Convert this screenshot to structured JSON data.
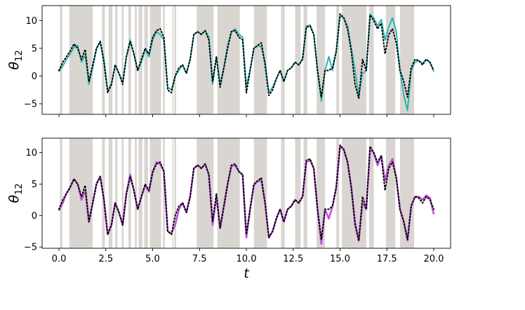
{
  "chart_data": [
    {
      "type": "line",
      "panel": "top",
      "ylabel": "θ",
      "ylabel_sub": "12",
      "xlim": [
        -0.9,
        20.9
      ],
      "ylim": [
        -6.9,
        12.7
      ],
      "yticks": [
        -5,
        0,
        5,
        10
      ],
      "ytick_labels": [
        "−5",
        "0",
        "5",
        "10"
      ],
      "xtick_labels_shown": false,
      "shaded_intervals": [
        [
          0.05,
          0.18
        ],
        [
          0.55,
          1.8
        ],
        [
          2.3,
          2.45
        ],
        [
          2.65,
          2.85
        ],
        [
          3.0,
          3.12
        ],
        [
          3.35,
          3.45
        ],
        [
          3.7,
          3.85
        ],
        [
          4.05,
          4.15
        ],
        [
          4.25,
          4.45
        ],
        [
          4.55,
          4.75
        ],
        [
          4.85,
          5.45
        ],
        [
          5.55,
          5.65
        ],
        [
          6.05,
          6.1
        ],
        [
          6.15,
          6.25
        ],
        [
          7.35,
          8.25
        ],
        [
          8.45,
          9.65
        ],
        [
          10.4,
          11.1
        ],
        [
          11.85,
          12.05
        ],
        [
          12.6,
          12.9
        ],
        [
          13.05,
          13.25
        ],
        [
          13.75,
          14.2
        ],
        [
          14.8,
          14.95
        ],
        [
          15.1,
          16.4
        ],
        [
          16.55,
          16.8
        ],
        [
          17.45,
          17.95
        ],
        [
          18.2,
          18.95
        ]
      ],
      "series": [
        {
          "style": "solid",
          "color": "#29b5b0",
          "x": [
            0,
            0.2,
            0.4,
            0.6,
            0.8,
            1.0,
            1.2,
            1.4,
            1.6,
            1.8,
            2.0,
            2.2,
            2.4,
            2.6,
            2.8,
            3.0,
            3.2,
            3.4,
            3.6,
            3.8,
            4.0,
            4.2,
            4.4,
            4.6,
            4.8,
            5.0,
            5.2,
            5.4,
            5.6,
            5.8,
            6.0,
            6.2,
            6.4,
            6.6,
            6.8,
            7.0,
            7.2,
            7.4,
            7.6,
            7.8,
            8.0,
            8.2,
            8.4,
            8.6,
            8.8,
            9.0,
            9.2,
            9.4,
            9.6,
            9.8,
            10.0,
            10.2,
            10.4,
            10.6,
            10.8,
            11.0,
            11.2,
            11.4,
            11.6,
            11.8,
            12.0,
            12.2,
            12.4,
            12.6,
            12.8,
            13.0,
            13.2,
            13.4,
            13.6,
            13.8,
            14.0,
            14.2,
            14.4,
            14.6,
            14.8,
            15.0,
            15.2,
            15.4,
            15.6,
            15.8,
            16.0,
            16.2,
            16.4,
            16.6,
            16.8,
            17.0,
            17.2,
            17.4,
            17.6,
            17.8,
            18.0,
            18.2,
            18.4,
            18.6,
            18.8,
            19.0,
            19.2,
            19.4,
            19.6,
            19.8,
            20.0
          ],
          "y": [
            0.8,
            1.8,
            3.0,
            4.0,
            5.2,
            5.5,
            2.5,
            3.8,
            -1.5,
            1.5,
            4.8,
            6.3,
            3.0,
            -2.5,
            -1.5,
            2.0,
            0.5,
            -1.0,
            3.5,
            6.5,
            4.0,
            1.0,
            2.5,
            4.8,
            3.5,
            6.5,
            8.0,
            7.5,
            6.5,
            -2.0,
            -2.5,
            0.0,
            1.0,
            2.0,
            0.5,
            3.0,
            7.5,
            8.0,
            7.5,
            8.2,
            7.0,
            -1.5,
            3.5,
            -1.5,
            1.5,
            5.5,
            8.0,
            8.5,
            7.5,
            7.0,
            -1.8,
            1.0,
            5.0,
            5.5,
            5.2,
            2.5,
            -3.0,
            -2.0,
            -0.5,
            1.0,
            -1.0,
            1.0,
            1.5,
            2.5,
            2.0,
            3.2,
            9.0,
            9.2,
            7.5,
            1.0,
            -4.5,
            1.0,
            3.5,
            1.0,
            4.5,
            10.8,
            10.5,
            9.0,
            5.0,
            1.0,
            -3.5,
            0.5,
            1.0,
            11.2,
            10.5,
            9.0,
            10.2,
            6.5,
            8.8,
            10.5,
            8.0,
            1.0,
            -3.5,
            -6.2,
            1.0,
            2.5,
            2.8,
            2.3,
            3.0,
            2.5,
            0.8
          ]
        },
        {
          "style": "dotted",
          "color": "#000000",
          "x": [
            0,
            0.2,
            0.4,
            0.6,
            0.8,
            1.0,
            1.2,
            1.4,
            1.6,
            1.8,
            2.0,
            2.2,
            2.4,
            2.6,
            2.8,
            3.0,
            3.2,
            3.4,
            3.6,
            3.8,
            4.0,
            4.2,
            4.4,
            4.6,
            4.8,
            5.0,
            5.2,
            5.4,
            5.6,
            5.8,
            6.0,
            6.2,
            6.4,
            6.6,
            6.8,
            7.0,
            7.2,
            7.4,
            7.6,
            7.8,
            8.0,
            8.2,
            8.4,
            8.6,
            8.8,
            9.0,
            9.2,
            9.4,
            9.6,
            9.8,
            10.0,
            10.2,
            10.4,
            10.6,
            10.8,
            11.0,
            11.2,
            11.4,
            11.6,
            11.8,
            12.0,
            12.2,
            12.4,
            12.6,
            12.8,
            13.0,
            13.2,
            13.4,
            13.6,
            13.8,
            14.0,
            14.2,
            14.4,
            14.6,
            14.8,
            15.0,
            15.2,
            15.4,
            15.6,
            15.8,
            16.0,
            16.2,
            16.4,
            16.6,
            16.8,
            17.0,
            17.2,
            17.4,
            17.6,
            17.8,
            18.0,
            18.2,
            18.4,
            18.6,
            18.8,
            19.0,
            19.2,
            19.4,
            19.6,
            19.8,
            20.0
          ],
          "y": [
            1.0,
            2.5,
            3.5,
            4.5,
            5.8,
            5.0,
            3.0,
            4.8,
            -1.0,
            2.0,
            5.0,
            6.2,
            2.5,
            -3.0,
            -1.5,
            2.0,
            0.5,
            -1.5,
            3.5,
            6.2,
            4.0,
            1.0,
            3.0,
            5.0,
            4.0,
            7.0,
            8.2,
            8.5,
            7.0,
            -2.5,
            -3.0,
            0.0,
            1.5,
            2.0,
            0.5,
            3.0,
            7.5,
            8.0,
            7.5,
            8.2,
            6.5,
            -1.0,
            3.5,
            -2.0,
            1.5,
            5.0,
            8.0,
            8.2,
            7.0,
            6.5,
            -3.0,
            1.0,
            5.0,
            5.5,
            6.0,
            2.0,
            -3.5,
            -2.5,
            -0.5,
            1.0,
            -1.0,
            1.0,
            1.5,
            2.5,
            2.0,
            3.0,
            8.8,
            9.0,
            7.5,
            1.0,
            -3.8,
            1.0,
            1.0,
            1.5,
            4.5,
            11.2,
            10.5,
            8.5,
            4.5,
            -1.5,
            -4.0,
            3.0,
            1.0,
            11.0,
            10.0,
            8.5,
            9.5,
            4.0,
            7.5,
            8.5,
            6.0,
            1.0,
            -1.0,
            -3.8,
            1.5,
            3.0,
            2.8,
            2.0,
            3.0,
            2.5,
            1.0
          ]
        }
      ]
    },
    {
      "type": "line",
      "panel": "bottom",
      "ylabel": "θ",
      "ylabel_sub": "12",
      "xlabel": "t",
      "xlim": [
        -0.9,
        20.9
      ],
      "ylim": [
        -5.2,
        12.3
      ],
      "yticks": [
        -5,
        0,
        5,
        10
      ],
      "ytick_labels": [
        "−5",
        "0",
        "5",
        "10"
      ],
      "xticks": [
        0,
        2.5,
        5,
        7.5,
        10,
        12.5,
        15,
        17.5,
        20
      ],
      "xtick_labels": [
        "0.0",
        "2.5",
        "5.0",
        "7.5",
        "10.0",
        "12.5",
        "15.0",
        "17.5",
        "20.0"
      ],
      "shaded_intervals": [
        [
          0.05,
          0.18
        ],
        [
          0.55,
          1.8
        ],
        [
          2.3,
          2.45
        ],
        [
          2.65,
          2.85
        ],
        [
          3.0,
          3.12
        ],
        [
          3.35,
          3.45
        ],
        [
          3.7,
          3.85
        ],
        [
          4.05,
          4.15
        ],
        [
          4.25,
          4.45
        ],
        [
          4.55,
          4.75
        ],
        [
          4.85,
          5.45
        ],
        [
          5.55,
          5.65
        ],
        [
          6.05,
          6.1
        ],
        [
          6.15,
          6.25
        ],
        [
          7.35,
          8.25
        ],
        [
          8.45,
          9.65
        ],
        [
          10.4,
          11.1
        ],
        [
          11.85,
          12.05
        ],
        [
          12.6,
          12.9
        ],
        [
          13.05,
          13.25
        ],
        [
          13.75,
          14.2
        ],
        [
          14.8,
          14.95
        ],
        [
          15.1,
          16.4
        ],
        [
          16.55,
          16.8
        ],
        [
          17.45,
          17.95
        ],
        [
          18.2,
          18.95
        ]
      ],
      "series": [
        {
          "style": "solid",
          "color": "#bb55d6",
          "x": [
            0,
            0.2,
            0.4,
            0.6,
            0.8,
            1.0,
            1.2,
            1.4,
            1.6,
            1.8,
            2.0,
            2.2,
            2.4,
            2.6,
            2.8,
            3.0,
            3.2,
            3.4,
            3.6,
            3.8,
            4.0,
            4.2,
            4.4,
            4.6,
            4.8,
            5.0,
            5.2,
            5.4,
            5.6,
            5.8,
            6.0,
            6.2,
            6.4,
            6.6,
            6.8,
            7.0,
            7.2,
            7.4,
            7.6,
            7.8,
            8.0,
            8.2,
            8.4,
            8.6,
            8.8,
            9.0,
            9.2,
            9.4,
            9.6,
            9.8,
            10.0,
            10.2,
            10.4,
            10.6,
            10.8,
            11.0,
            11.2,
            11.4,
            11.6,
            11.8,
            12.0,
            12.2,
            12.4,
            12.6,
            12.8,
            13.0,
            13.2,
            13.4,
            13.6,
            13.8,
            14.0,
            14.2,
            14.4,
            14.6,
            14.8,
            15.0,
            15.2,
            15.4,
            15.6,
            15.8,
            16.0,
            16.2,
            16.4,
            16.6,
            16.8,
            17.0,
            17.2,
            17.4,
            17.6,
            17.8,
            18.0,
            18.2,
            18.4,
            18.6,
            18.8,
            19.0,
            19.2,
            19.4,
            19.6,
            19.8,
            20.0
          ],
          "y": [
            0.8,
            2.0,
            3.5,
            4.5,
            5.8,
            5.0,
            2.5,
            4.0,
            -1.0,
            2.0,
            5.0,
            6.2,
            2.5,
            -3.0,
            -1.5,
            2.0,
            0.5,
            -1.5,
            3.5,
            6.5,
            4.0,
            1.0,
            3.0,
            4.8,
            3.8,
            6.8,
            8.5,
            8.2,
            7.0,
            -2.5,
            -2.8,
            -1.5,
            1.0,
            2.0,
            0.5,
            3.0,
            7.5,
            8.0,
            7.5,
            8.2,
            6.5,
            -1.5,
            3.0,
            -2.0,
            1.5,
            5.0,
            7.8,
            8.0,
            7.0,
            6.5,
            -3.5,
            1.0,
            4.8,
            5.5,
            5.5,
            2.0,
            -3.5,
            -2.5,
            -0.5,
            1.0,
            -1.0,
            1.0,
            1.5,
            2.5,
            2.0,
            3.0,
            8.5,
            8.8,
            7.5,
            1.0,
            -4.5,
            1.0,
            -0.5,
            1.5,
            4.5,
            11.0,
            10.5,
            8.5,
            4.5,
            -1.0,
            -4.0,
            2.0,
            1.0,
            10.5,
            10.0,
            8.0,
            9.5,
            5.5,
            8.0,
            9.0,
            6.0,
            1.0,
            -1.0,
            -4.0,
            1.5,
            3.0,
            3.0,
            2.5,
            3.2,
            2.8,
            0.2
          ]
        },
        {
          "style": "dotted",
          "color": "#000000",
          "x": [
            0,
            0.2,
            0.4,
            0.6,
            0.8,
            1.0,
            1.2,
            1.4,
            1.6,
            1.8,
            2.0,
            2.2,
            2.4,
            2.6,
            2.8,
            3.0,
            3.2,
            3.4,
            3.6,
            3.8,
            4.0,
            4.2,
            4.4,
            4.6,
            4.8,
            5.0,
            5.2,
            5.4,
            5.6,
            5.8,
            6.0,
            6.2,
            6.4,
            6.6,
            6.8,
            7.0,
            7.2,
            7.4,
            7.6,
            7.8,
            8.0,
            8.2,
            8.4,
            8.6,
            8.8,
            9.0,
            9.2,
            9.4,
            9.6,
            9.8,
            10.0,
            10.2,
            10.4,
            10.6,
            10.8,
            11.0,
            11.2,
            11.4,
            11.6,
            11.8,
            12.0,
            12.2,
            12.4,
            12.6,
            12.8,
            13.0,
            13.2,
            13.4,
            13.6,
            13.8,
            14.0,
            14.2,
            14.4,
            14.6,
            14.8,
            15.0,
            15.2,
            15.4,
            15.6,
            15.8,
            16.0,
            16.2,
            16.4,
            16.6,
            16.8,
            17.0,
            17.2,
            17.4,
            17.6,
            17.8,
            18.0,
            18.2,
            18.4,
            18.6,
            18.8,
            19.0,
            19.2,
            19.4,
            19.6,
            19.8,
            20.0
          ],
          "y": [
            1.0,
            2.5,
            3.5,
            4.5,
            5.8,
            5.0,
            3.0,
            4.8,
            -1.0,
            2.0,
            5.0,
            6.2,
            2.5,
            -3.0,
            -1.5,
            2.0,
            0.5,
            -1.5,
            3.5,
            6.2,
            4.0,
            1.0,
            3.0,
            5.0,
            4.0,
            7.0,
            8.2,
            8.5,
            7.0,
            -2.5,
            -3.0,
            0.0,
            1.5,
            2.0,
            0.5,
            3.0,
            7.5,
            8.0,
            7.5,
            8.2,
            6.5,
            -1.0,
            3.5,
            -2.0,
            1.5,
            5.0,
            8.0,
            8.2,
            7.0,
            6.5,
            -3.0,
            1.0,
            5.0,
            5.5,
            6.0,
            2.0,
            -3.5,
            -2.5,
            -0.5,
            1.0,
            -1.0,
            1.0,
            1.5,
            2.5,
            2.0,
            3.0,
            8.8,
            9.0,
            7.5,
            1.0,
            -3.8,
            1.0,
            1.0,
            1.5,
            4.5,
            11.2,
            10.5,
            8.5,
            4.5,
            -1.5,
            -4.0,
            3.0,
            1.0,
            11.0,
            10.0,
            8.5,
            9.5,
            4.0,
            7.5,
            8.5,
            6.0,
            1.0,
            -1.0,
            -3.8,
            1.5,
            3.0,
            2.8,
            2.0,
            3.0,
            2.5,
            1.0
          ]
        }
      ]
    }
  ]
}
